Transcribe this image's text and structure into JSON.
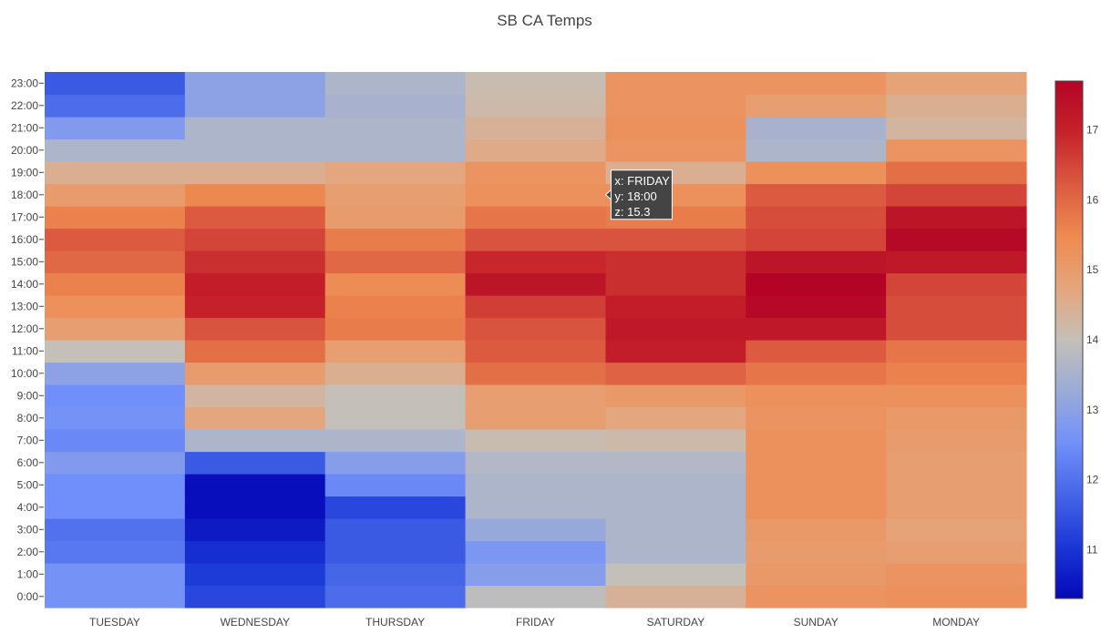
{
  "chart_data": {
    "type": "heatmap",
    "title": "SB CA Temps",
    "x": [
      "TUESDAY",
      "WEDNESDAY",
      "THURSDAY",
      "FRIDAY",
      "SATURDAY",
      "SUNDAY",
      "MONDAY"
    ],
    "y": [
      "0:00",
      "1:00",
      "2:00",
      "3:00",
      "4:00",
      "5:00",
      "6:00",
      "7:00",
      "8:00",
      "9:00",
      "10:00",
      "11:00",
      "12:00",
      "13:00",
      "14:00",
      "15:00",
      "16:00",
      "17:00",
      "18:00",
      "19:00",
      "20:00",
      "21:00",
      "22:00",
      "23:00"
    ],
    "z": [
      [
        12.6,
        11.3,
        11.9,
        13.9,
        14.4,
        15.2,
        15.3
      ],
      [
        12.6,
        11.1,
        11.8,
        12.9,
        14.0,
        15.1,
        15.2
      ],
      [
        12.1,
        10.9,
        11.6,
        12.7,
        13.6,
        15.0,
        14.9
      ],
      [
        12.0,
        10.6,
        11.6,
        13.2,
        13.6,
        15.1,
        14.8
      ],
      [
        12.5,
        10.4,
        11.3,
        13.6,
        13.6,
        15.3,
        14.9
      ],
      [
        12.5,
        10.4,
        12.4,
        13.6,
        13.6,
        15.3,
        14.9
      ],
      [
        12.8,
        11.6,
        12.9,
        13.7,
        13.7,
        15.3,
        14.9
      ],
      [
        12.4,
        13.6,
        13.6,
        14.1,
        14.2,
        15.3,
        15.0
      ],
      [
        12.6,
        14.7,
        14.0,
        14.9,
        14.7,
        15.2,
        15.1
      ],
      [
        12.5,
        14.3,
        14.0,
        14.9,
        15.1,
        15.3,
        15.3
      ],
      [
        13.0,
        15.0,
        14.5,
        15.9,
        16.1,
        15.8,
        15.6
      ],
      [
        14.0,
        15.9,
        14.9,
        16.2,
        17.1,
        16.2,
        15.8
      ],
      [
        14.9,
        16.3,
        15.7,
        16.3,
        17.2,
        17.2,
        16.4
      ],
      [
        15.3,
        17.0,
        15.6,
        16.6,
        17.1,
        17.6,
        16.4
      ],
      [
        15.6,
        17.1,
        15.4,
        17.3,
        16.8,
        17.7,
        16.5
      ],
      [
        16.0,
        16.8,
        16.0,
        16.9,
        16.8,
        17.3,
        17.2
      ],
      [
        16.2,
        16.5,
        15.7,
        16.3,
        16.3,
        16.5,
        17.6
      ],
      [
        15.6,
        16.2,
        15.0,
        15.8,
        15.7,
        16.4,
        17.3
      ],
      [
        15.0,
        15.5,
        14.9,
        15.3,
        15.3,
        16.2,
        16.5
      ],
      [
        14.5,
        14.5,
        14.7,
        15.2,
        14.5,
        15.3,
        15.9
      ],
      [
        13.6,
        13.6,
        13.6,
        14.6,
        15.2,
        13.6,
        15.2
      ],
      [
        12.8,
        13.6,
        13.6,
        14.4,
        15.3,
        13.5,
        14.3
      ],
      [
        11.9,
        13.0,
        13.5,
        14.2,
        15.2,
        14.9,
        14.5
      ],
      [
        11.6,
        13.0,
        13.6,
        14.1,
        15.2,
        15.2,
        14.8
      ]
    ],
    "zlim": [
      10.3,
      17.7
    ],
    "colorbar": {
      "ticks": [
        11,
        12,
        13,
        14,
        15,
        16,
        17
      ],
      "labels": [
        "11",
        "12",
        "13",
        "14",
        "15",
        "16",
        "17"
      ]
    },
    "colorscale": [
      "#0508b8",
      "#1a37d6",
      "#4565e8",
      "#7190fa",
      "#9aabd8",
      "#c4c0b9",
      "#e5a57c",
      "#ee8a50",
      "#db5a40",
      "#c5232a",
      "#b40426"
    ],
    "tooltip": {
      "x_line": "x: FRIDAY",
      "y_line": "y: 18:00",
      "z_line": "z: 15.3"
    }
  }
}
